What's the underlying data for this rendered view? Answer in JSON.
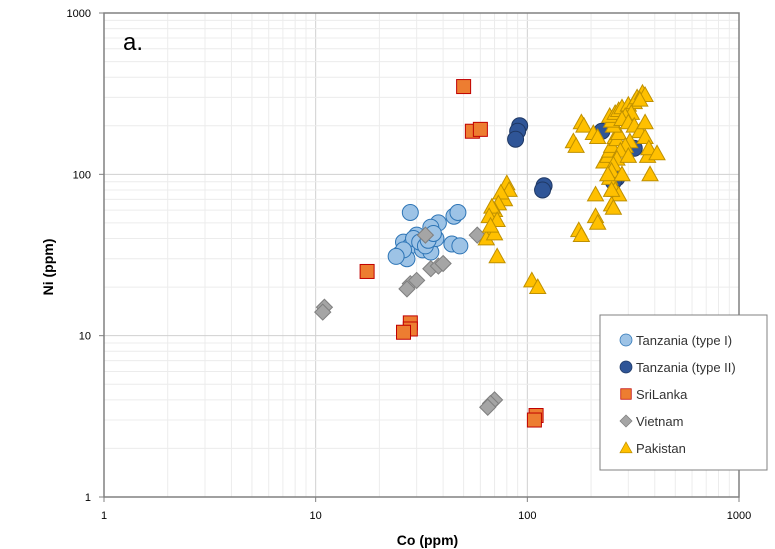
{
  "chart_data": {
    "type": "scatter",
    "panel_label": "a.",
    "title": "",
    "xlabel": "Co  (ppm)",
    "ylabel": "Ni  (ppm)",
    "xscale": "log",
    "yscale": "log",
    "xlim": [
      1,
      1000
    ],
    "ylim": [
      1,
      1000
    ],
    "x_ticks": [
      1,
      10,
      100,
      1000
    ],
    "x_tick_labels": [
      "1",
      "10",
      "100",
      "1000"
    ],
    "y_ticks": [
      1,
      10,
      100,
      1000
    ],
    "y_tick_labels": [
      "1",
      "10",
      "100",
      "1000"
    ],
    "grid": true,
    "legend_position": "bottom-right",
    "series": [
      {
        "name": "Tanzania (type I)",
        "marker": "circle",
        "color": "#9DC3E6",
        "edge": "#2E75B6",
        "points": [
          [
            28,
            58
          ],
          [
            45,
            55
          ],
          [
            47,
            58
          ],
          [
            38,
            50
          ],
          [
            35,
            47
          ],
          [
            30,
            42
          ],
          [
            26,
            38
          ],
          [
            28,
            36
          ],
          [
            32,
            34
          ],
          [
            35,
            33
          ],
          [
            25,
            32
          ],
          [
            27,
            30
          ],
          [
            29,
            40
          ],
          [
            31,
            38
          ],
          [
            37,
            40
          ],
          [
            44,
            37
          ],
          [
            48,
            36
          ],
          [
            33,
            36
          ],
          [
            26,
            34
          ],
          [
            24,
            31
          ],
          [
            34,
            39
          ],
          [
            36,
            43
          ]
        ]
      },
      {
        "name": "Tanzania (type II)",
        "marker": "circle",
        "color": "#2F5597",
        "edge": "#1F3864",
        "points": [
          [
            92,
            200
          ],
          [
            90,
            185
          ],
          [
            88,
            165
          ],
          [
            120,
            85
          ],
          [
            118,
            80
          ],
          [
            225,
            185
          ],
          [
            265,
            95
          ],
          [
            255,
            90
          ],
          [
            320,
            145
          ]
        ]
      },
      {
        "name": "SriLanka",
        "marker": "square",
        "color": "#ED7D31",
        "edge": "#C00000",
        "points": [
          [
            50,
            350
          ],
          [
            55,
            185
          ],
          [
            60,
            190
          ],
          [
            17.5,
            25
          ],
          [
            28,
            12
          ],
          [
            28,
            11
          ],
          [
            26,
            10.5
          ],
          [
            110,
            3.2
          ],
          [
            108,
            3.0
          ]
        ]
      },
      {
        "name": "Vietnam",
        "marker": "diamond",
        "color": "#A5A5A5",
        "edge": "#7F7F7F",
        "points": [
          [
            11,
            15
          ],
          [
            10.8,
            14
          ],
          [
            28,
            21
          ],
          [
            30,
            22
          ],
          [
            27,
            19.5
          ],
          [
            35,
            26
          ],
          [
            33,
            42
          ],
          [
            38,
            27
          ],
          [
            40,
            28
          ],
          [
            58,
            42
          ],
          [
            70,
            4.0
          ],
          [
            67,
            3.8
          ],
          [
            65,
            3.6
          ]
        ]
      },
      {
        "name": "Pakistan",
        "marker": "triangle",
        "color": "#FFC000",
        "edge": "#BF9000",
        "points": [
          [
            80,
            88
          ],
          [
            82,
            80
          ],
          [
            78,
            70
          ],
          [
            75,
            77
          ],
          [
            73,
            66
          ],
          [
            70,
            60
          ],
          [
            68,
            63
          ],
          [
            66,
            55
          ],
          [
            72,
            52
          ],
          [
            68,
            45
          ],
          [
            64,
            40
          ],
          [
            70,
            43
          ],
          [
            67,
            48
          ],
          [
            72,
            31
          ],
          [
            105,
            22
          ],
          [
            112,
            20
          ],
          [
            165,
            160
          ],
          [
            170,
            150
          ],
          [
            180,
            210
          ],
          [
            185,
            200
          ],
          [
            205,
            180
          ],
          [
            215,
            170
          ],
          [
            230,
            120
          ],
          [
            240,
            130
          ],
          [
            245,
            140
          ],
          [
            250,
            150
          ],
          [
            260,
            170
          ],
          [
            265,
            165
          ],
          [
            270,
            180
          ],
          [
            255,
            200
          ],
          [
            250,
            215
          ],
          [
            245,
            230
          ],
          [
            260,
            240
          ],
          [
            270,
            250
          ],
          [
            280,
            260
          ],
          [
            300,
            270
          ],
          [
            320,
            280
          ],
          [
            330,
            300
          ],
          [
            350,
            320
          ],
          [
            360,
            310
          ],
          [
            340,
            290
          ],
          [
            310,
            240
          ],
          [
            290,
            230
          ],
          [
            280,
            220
          ],
          [
            300,
            210
          ],
          [
            320,
            200
          ],
          [
            340,
            185
          ],
          [
            360,
            170
          ],
          [
            305,
            160
          ],
          [
            290,
            150
          ],
          [
            275,
            140
          ],
          [
            265,
            125
          ],
          [
            255,
            115
          ],
          [
            250,
            105
          ],
          [
            245,
            95
          ],
          [
            240,
            100
          ],
          [
            260,
            80
          ],
          [
            270,
            75
          ],
          [
            250,
            65
          ],
          [
            255,
            62
          ],
          [
            280,
            100
          ],
          [
            300,
            130
          ],
          [
            370,
            130
          ],
          [
            375,
            145
          ],
          [
            410,
            135
          ],
          [
            380,
            100
          ],
          [
            360,
            210
          ],
          [
            175,
            45
          ],
          [
            180,
            42
          ],
          [
            210,
            55
          ],
          [
            215,
            50
          ],
          [
            210,
            75
          ],
          [
            250,
            80
          ]
        ]
      }
    ]
  }
}
